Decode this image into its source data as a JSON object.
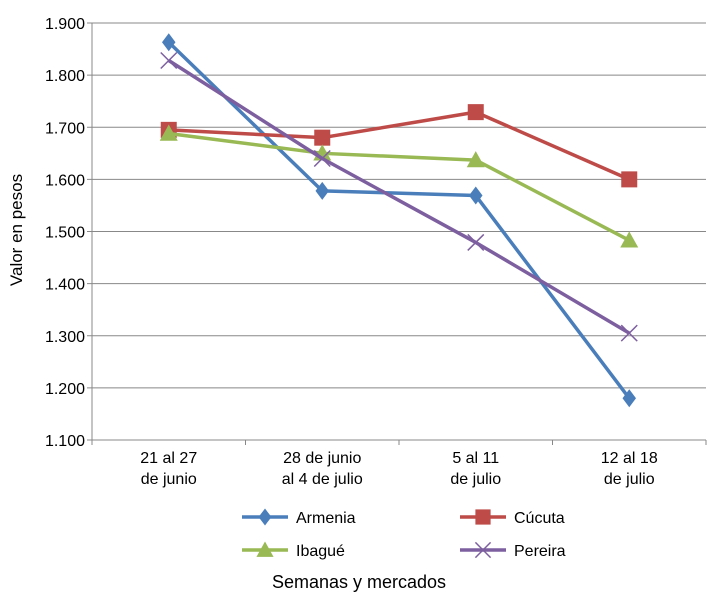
{
  "chart_data": {
    "type": "line",
    "title": "",
    "ylabel": "Valor en pesos",
    "xlabel": "Semanas y mercados",
    "ylim": [
      1100,
      1900
    ],
    "y_ticks": [
      1100,
      1200,
      1300,
      1400,
      1500,
      1600,
      1700,
      1800,
      1900
    ],
    "y_tick_labels": [
      "1.100",
      "1.200",
      "1.300",
      "1.400",
      "1.500",
      "1.600",
      "1.700",
      "1.800",
      "1.900"
    ],
    "categories": [
      [
        "21 al 27",
        "de junio"
      ],
      [
        "28 de junio",
        "al 4 de julio"
      ],
      [
        "5 al 11",
        "de julio"
      ],
      [
        "12 al 18",
        "de julio"
      ]
    ],
    "grid": "horizontal",
    "legend_position": "bottom",
    "series": [
      {
        "name": "Armenia",
        "color": "#4a7ebb",
        "marker": "diamond",
        "values": [
          1863,
          1578,
          1569,
          1180
        ]
      },
      {
        "name": "Cúcuta",
        "color": "#be4b48",
        "marker": "square",
        "values": [
          1695,
          1680,
          1729,
          1600
        ]
      },
      {
        "name": "Ibagué",
        "color": "#98b954",
        "marker": "triangle",
        "values": [
          1688,
          1650,
          1637,
          1483
        ]
      },
      {
        "name": "Pereira",
        "color": "#7d5fa0",
        "marker": "x",
        "values": [
          1828,
          1640,
          1479,
          1305
        ]
      }
    ]
  }
}
